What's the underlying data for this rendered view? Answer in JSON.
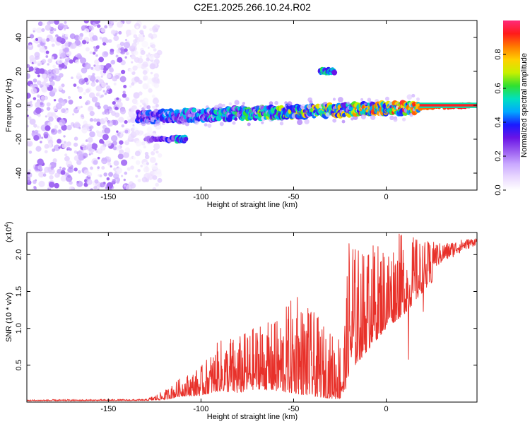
{
  "title": "C2E1.2025.266.10.24.R02",
  "colormap_colors": [
    "#ffffff",
    "#e9d8ff",
    "#c9a8ff",
    "#9a5cf0",
    "#6a14e6",
    "#1a1aff",
    "#00a8ff",
    "#00e0c0",
    "#30e030",
    "#c8f000",
    "#ffd000",
    "#ff7a00",
    "#ff1a1a",
    "#ff2a7a"
  ],
  "chart_data": [
    {
      "type": "heatmap",
      "name": "spectrogram",
      "xlabel": "Height of straight line (km)",
      "ylabel": "Frequency (Hz)",
      "xlim": [
        -194,
        49
      ],
      "ylim": [
        -50,
        50
      ],
      "xticks": [
        -150,
        -100,
        -50,
        0
      ],
      "xtick_labels": [
        "-150",
        "-100",
        "-50",
        "0"
      ],
      "yticks": [
        -40,
        -20,
        0,
        20,
        40
      ],
      "ytick_labels": [
        "-40",
        "-20",
        "0",
        "20",
        "40"
      ],
      "colorbar": {
        "label": "Normalized spectral amplitude",
        "range": [
          0,
          1
        ],
        "ticks": [
          0.0,
          0.2,
          0.4,
          0.6,
          0.8
        ],
        "tick_labels": [
          "0.0",
          "0.2",
          "0.4",
          "0.6",
          "0.8"
        ]
      },
      "features": [
        {
          "description": "diffuse noise region",
          "x_range": [
            -194,
            -122
          ],
          "y_range": [
            -50,
            50
          ],
          "amplitude": 0.1
        },
        {
          "description": "main signal track",
          "x_start": -134,
          "x_end": 49,
          "y_start": -7,
          "y_end": 0,
          "amplitude_start": 0.35,
          "amplitude_end": 0.95
        },
        {
          "description": "secondary track",
          "x_range": [
            -130,
            -108
          ],
          "y": -20,
          "amplitude": 0.3
        },
        {
          "description": "secondary track",
          "x_range": [
            -113,
            -108
          ],
          "y": -20,
          "amplitude": 0.45
        },
        {
          "description": "branch feature",
          "x_range": [
            -36,
            -28
          ],
          "y": 20,
          "amplitude": 0.5
        }
      ]
    },
    {
      "type": "line",
      "name": "snr",
      "xlabel": "Height of straight line (km)",
      "ylabel": "SNR (10 * v/v)",
      "multiplier_label": "(x10",
      "multiplier_exponent": "4",
      "xlim": [
        -194,
        49
      ],
      "ylim": [
        0,
        23000
      ],
      "xticks": [
        -150,
        -100,
        -50,
        0
      ],
      "xtick_labels": [
        "-150",
        "-100",
        "-50",
        "0"
      ],
      "yticks": [
        5000,
        10000,
        15000,
        20000
      ],
      "ytick_labels": [
        "0.5",
        "1.0",
        "1.5",
        "2.0"
      ],
      "series_color": "#e8312a",
      "envelope_x": [
        -194,
        -130,
        -120,
        -110,
        -100,
        -90,
        -80,
        -70,
        -60,
        -50,
        -40,
        -30,
        -23,
        -20,
        -10,
        0,
        10,
        20,
        30,
        40,
        49
      ],
      "envelope_min": [
        150,
        200,
        300,
        800,
        900,
        1500,
        1200,
        1800,
        1500,
        1200,
        800,
        500,
        400,
        4000,
        7000,
        10000,
        12000,
        15000,
        17500,
        19500,
        21000
      ],
      "envelope_max": [
        350,
        400,
        1500,
        3500,
        4800,
        8500,
        9000,
        10500,
        11000,
        14500,
        12500,
        9500,
        10000,
        21500,
        21500,
        22000,
        23000,
        22000,
        21500,
        22000,
        22300
      ],
      "spikes": [
        {
          "x": -116,
          "y": 1800
        },
        {
          "x": -100,
          "y": 4800
        },
        {
          "x": -84,
          "y": 8500
        },
        {
          "x": -68,
          "y": 10200
        },
        {
          "x": -60,
          "y": 10800
        },
        {
          "x": -48,
          "y": 14200
        },
        {
          "x": -42,
          "y": 12000
        },
        {
          "x": -20,
          "y": 21500
        },
        {
          "x": -18,
          "y": 20700
        },
        {
          "x": -13,
          "y": 20000
        },
        {
          "x": -8,
          "y": 18000
        },
        {
          "x": 7,
          "y": 22800
        },
        {
          "x": 12,
          "y": 5800
        },
        {
          "x": 16,
          "y": 22000
        },
        {
          "x": 20,
          "y": 12300
        },
        {
          "x": 23,
          "y": 21500
        }
      ]
    }
  ]
}
